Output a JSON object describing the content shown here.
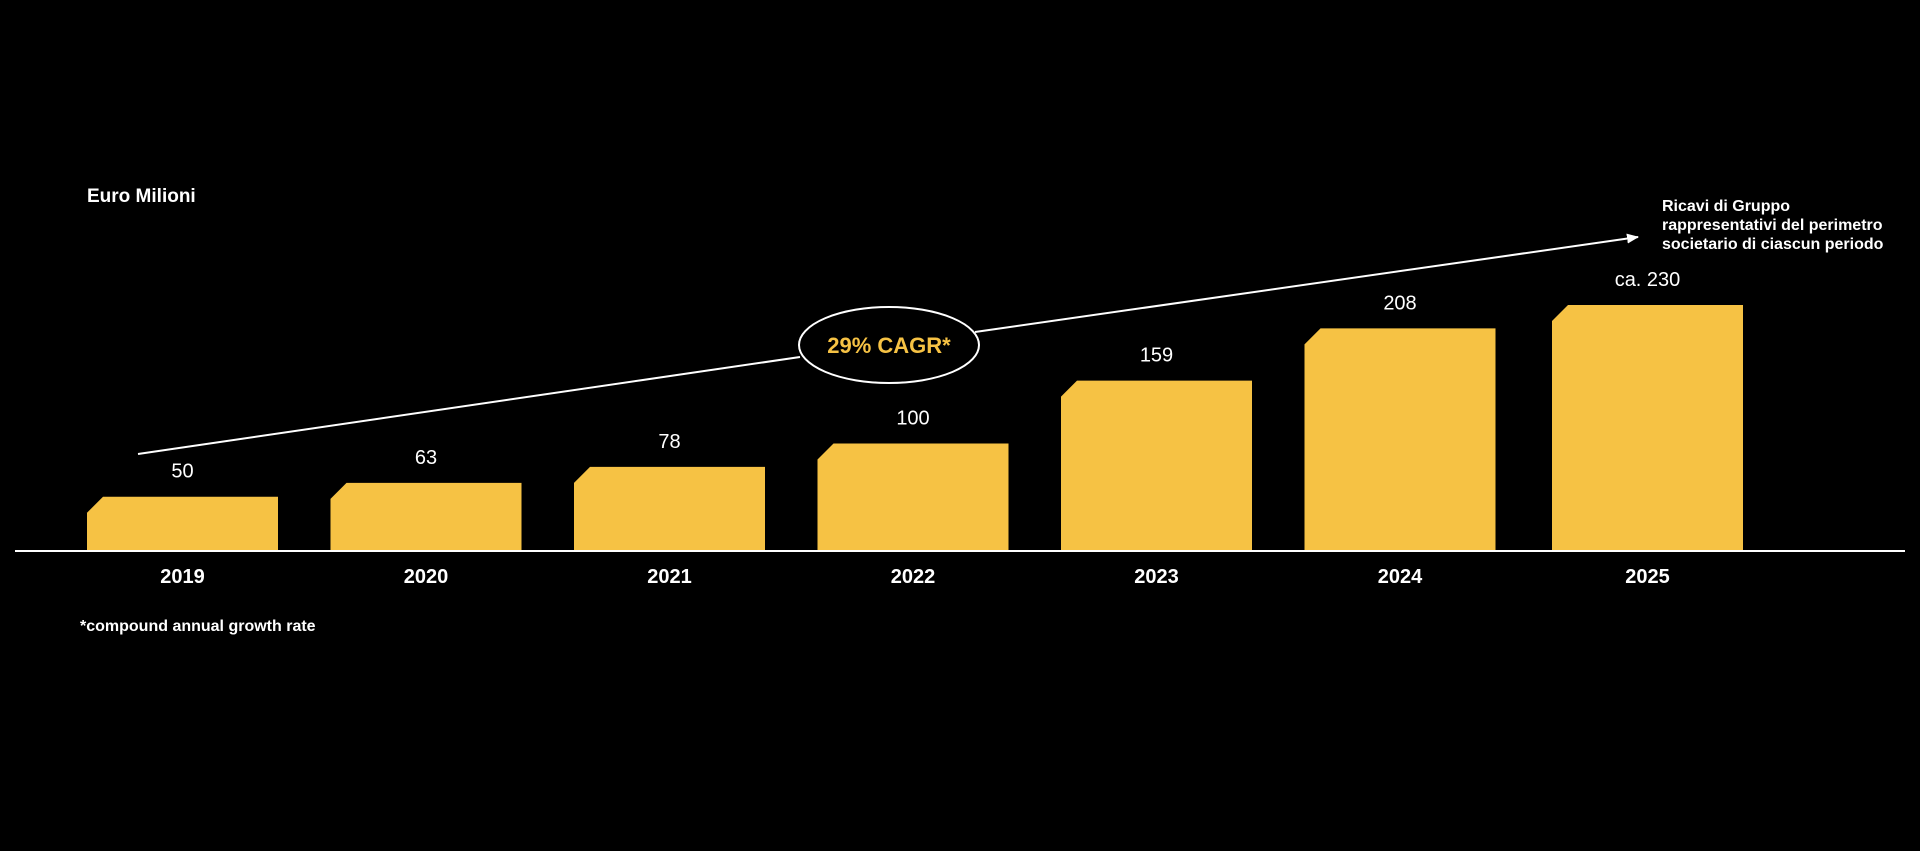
{
  "chart_data": {
    "type": "bar",
    "unit_label": "Euro Milioni",
    "categories": [
      "2019",
      "2020",
      "2021",
      "2022",
      "2023",
      "2024",
      "2025"
    ],
    "values": [
      50,
      63,
      78,
      100,
      159,
      208,
      230
    ],
    "value_labels": [
      "50",
      "63",
      "78",
      "100",
      "159",
      "208",
      "ca. 230"
    ],
    "cagr_label": "29% CAGR*",
    "annotation_lines": [
      "Ricavi di Gruppo",
      "rappresentativi del perimetro",
      "societario di ciascun periodo"
    ],
    "footnote": "*compound annual growth rate",
    "ylim": [
      0,
      230
    ],
    "grid": false,
    "colors": {
      "bar": "#F6C244",
      "background": "#000000",
      "text": "#FFFFFF",
      "cagr_text": "#F6C244"
    }
  }
}
